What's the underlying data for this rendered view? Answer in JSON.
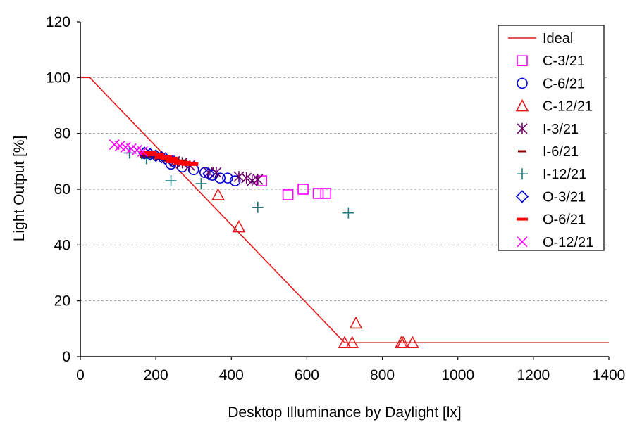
{
  "chart_data": {
    "type": "scatter",
    "title": "",
    "xlabel": "Desktop Illuminance by Daylight [lx]",
    "ylabel": "Light  Output [%]",
    "xlim": [
      0,
      1400
    ],
    "ylim": [
      0,
      120
    ],
    "xticks": [
      0,
      200,
      400,
      600,
      800,
      1000,
      1200,
      1400
    ],
    "yticks": [
      0,
      20,
      40,
      60,
      80,
      100,
      120
    ],
    "grid": "horizontal dashed",
    "legend_position": "top-right",
    "series": [
      {
        "name": "Ideal",
        "kind": "line",
        "color": "#e31a1c",
        "marker": "line",
        "points": [
          [
            0,
            100
          ],
          [
            25,
            100
          ],
          [
            700,
            5
          ],
          [
            1400,
            5
          ]
        ]
      },
      {
        "name": "C-3/21",
        "color": "#ff00ff",
        "marker": "square",
        "points": [
          [
            480,
            63
          ],
          [
            550,
            58
          ],
          [
            590,
            60
          ],
          [
            630,
            58.5
          ],
          [
            650,
            58.5
          ]
        ]
      },
      {
        "name": "C-6/21",
        "color": "#0000cc",
        "marker": "circle",
        "points": [
          [
            240,
            69
          ],
          [
            270,
            68
          ],
          [
            300,
            67
          ],
          [
            330,
            66
          ],
          [
            350,
            65
          ],
          [
            370,
            64
          ],
          [
            390,
            64
          ],
          [
            410,
            63
          ]
        ]
      },
      {
        "name": "C-12/21",
        "color": "#e31a1c",
        "marker": "triangle",
        "points": [
          [
            365,
            58
          ],
          [
            420,
            46.5
          ],
          [
            700,
            5
          ],
          [
            720,
            5
          ],
          [
            730,
            12
          ],
          [
            850,
            5
          ],
          [
            855,
            5
          ],
          [
            880,
            5
          ]
        ]
      },
      {
        "name": "I-3/21",
        "color": "#660066",
        "marker": "asterisk",
        "points": [
          [
            250,
            70
          ],
          [
            270,
            69.5
          ],
          [
            290,
            68.5
          ],
          [
            340,
            66
          ],
          [
            360,
            66
          ],
          [
            420,
            64.5
          ],
          [
            440,
            64
          ],
          [
            455,
            63
          ],
          [
            470,
            63.5
          ]
        ]
      },
      {
        "name": "I-6/21",
        "color": "#8b0000",
        "marker": "dash",
        "points": [
          [
            180,
            72
          ],
          [
            200,
            71.5
          ],
          [
            220,
            71
          ],
          [
            240,
            70.5
          ],
          [
            260,
            70
          ]
        ]
      },
      {
        "name": "I-12/21",
        "color": "#1f7a7a",
        "marker": "plus",
        "points": [
          [
            130,
            73
          ],
          [
            175,
            71
          ],
          [
            240,
            63
          ],
          [
            320,
            62
          ],
          [
            470,
            53.5
          ],
          [
            710,
            51.5
          ]
        ]
      },
      {
        "name": "O-3/21",
        "color": "#0000cc",
        "marker": "diamond",
        "points": [
          [
            170,
            73
          ],
          [
            185,
            72.5
          ],
          [
            200,
            72
          ],
          [
            215,
            71.5
          ],
          [
            225,
            71
          ],
          [
            245,
            70
          ],
          [
            340,
            65.5
          ]
        ]
      },
      {
        "name": "O-6/21",
        "color": "#ff0000",
        "marker": "dash",
        "points": [
          [
            180,
            73
          ],
          [
            200,
            72.5
          ],
          [
            220,
            71.5
          ],
          [
            235,
            71
          ],
          [
            250,
            70
          ],
          [
            270,
            69.5
          ],
          [
            290,
            69
          ]
        ]
      },
      {
        "name": "O-12/21",
        "color": "#ff00ff",
        "marker": "x",
        "points": [
          [
            90,
            76
          ],
          [
            105,
            75.5
          ],
          [
            120,
            75
          ],
          [
            135,
            74.5
          ],
          [
            150,
            74
          ],
          [
            165,
            73.5
          ]
        ]
      }
    ]
  }
}
